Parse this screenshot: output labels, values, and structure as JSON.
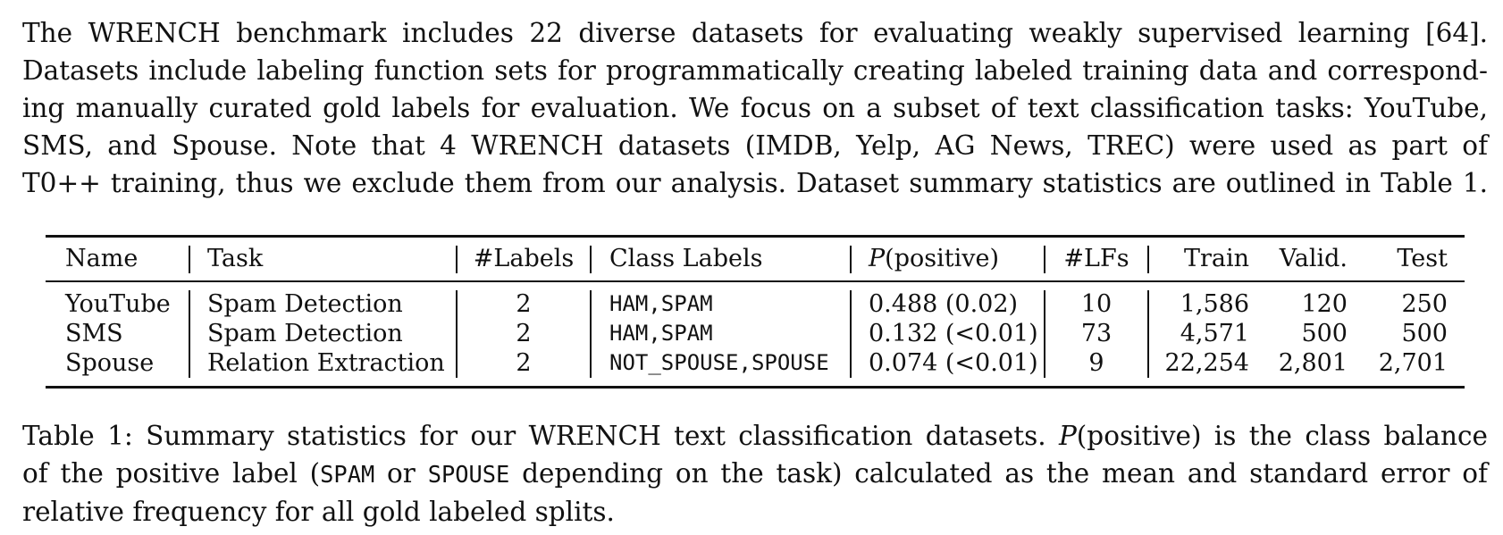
{
  "intro": {
    "lines": [
      "The WRENCH benchmark includes 22 diverse datasets for evaluating weakly supervised learning [64].",
      "Datasets include labeling function sets for programmatically creating labeled training data and correspond-",
      "ing manually curated gold labels for evaluation. We focus on a subset of text classification tasks: YouTube,",
      "SMS, and Spouse. Note that 4 WRENCH datasets (IMDB, Yelp, AG News, TREC) were used as part of",
      "T0++ training, thus we exclude them from our analysis. Dataset summary statistics are outlined in Table 1."
    ]
  },
  "table": {
    "headers": {
      "name": "Name",
      "task": "Task",
      "labels": "#Labels",
      "class_labels": "Class Labels",
      "p_positive_P": "P",
      "p_positive_rest": "(positive)",
      "lfs": "#LFs",
      "train": "Train",
      "valid": "Valid.",
      "test": "Test"
    },
    "rows": [
      {
        "name": "YouTube",
        "task": "Spam Detection",
        "labels": "2",
        "class_labels": "HAM,SPAM",
        "p_positive": "0.488 (0.02)",
        "lfs": "10",
        "train": "1,586",
        "valid": "120",
        "test": "250"
      },
      {
        "name": "SMS",
        "task": "Spam Detection",
        "labels": "2",
        "class_labels": "HAM,SPAM",
        "p_positive": "0.132 (<0.01)",
        "lfs": "73",
        "train": "4,571",
        "valid": "500",
        "test": "500"
      },
      {
        "name": "Spouse",
        "task": "Relation Extraction",
        "labels": "2",
        "class_labels": "NOT_SPOUSE,SPOUSE",
        "p_positive": "0.074 (<0.01)",
        "lfs": "9",
        "train": "22,254",
        "valid": "2,801",
        "test": "2,701"
      }
    ]
  },
  "caption": {
    "line1_a": "Table 1: Summary statistics for our WRENCH text classification datasets.",
    "line1_P": "P",
    "line1_b": "(positive) is the class balance",
    "line2_a": "of the positive label (",
    "line2_spam": "SPAM",
    "line2_or": " or ",
    "line2_spouse": "SPOUSE",
    "line2_b": " depending on the task) calculated as the mean and standard error of",
    "line3": "relative frequency for all gold labeled splits."
  }
}
